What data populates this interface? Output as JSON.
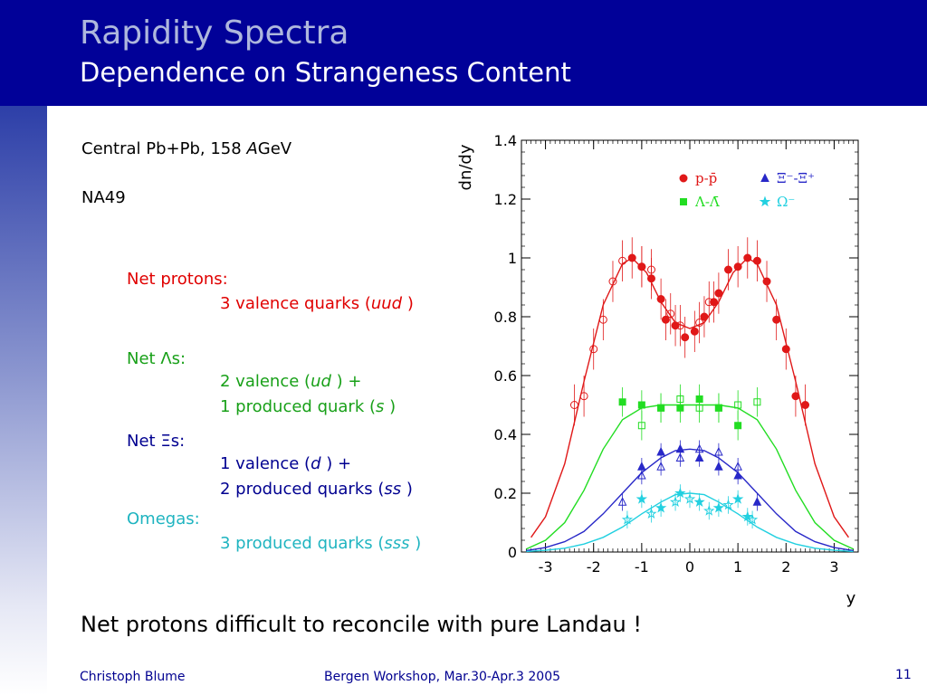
{
  "slide": {
    "title": "Rapidity Spectra",
    "subtitle": "Dependence on Strangeness Content",
    "system_prefix": "Central Pb+Pb, 158 ",
    "system_A": "A",
    "system_suffix": "GeV",
    "experiment": "NA49",
    "net_protons_label": "Net protons:",
    "net_protons_desc_a": "3 valence quarks (",
    "net_protons_desc_q": "uud",
    "net_protons_desc_b": " )",
    "net_lambdas_label_a": "Net ",
    "net_lambdas_label_sym": "Λ",
    "net_lambdas_label_b": "s:",
    "net_lambdas_desc1_a": "2 valence (",
    "net_lambdas_desc1_q": "ud",
    "net_lambdas_desc1_b": " ) +",
    "net_lambdas_desc2_a": "1 produced quark (",
    "net_lambdas_desc2_q": "s",
    "net_lambdas_desc2_b": " )",
    "net_xis_label_a": "Net ",
    "net_xis_label_sym": "Ξ",
    "net_xis_label_b": "s:",
    "net_xis_desc1_a": "1 valence  (",
    "net_xis_desc1_q": "d",
    "net_xis_desc1_b": " ) +",
    "net_xis_desc2_a": "2 produced quarks (",
    "net_xis_desc2_q": "ss",
    "net_xis_desc2_b": " )",
    "omegas_label": "Omegas:",
    "omegas_desc_a": "3 produced quarks (",
    "omegas_desc_q": "sss",
    "omegas_desc_b": " )",
    "conclusion": "Net protons difficult to reconcile with pure Landau !",
    "footer_author": "Christoph Blume",
    "footer_event": "Bergen Workshop, Mar.30-Apr.3 2005",
    "page_number": "11"
  },
  "colors": {
    "protons": "#e01818",
    "lambdas": "#22dd22",
    "xis": "#2828c8",
    "omegas": "#22d0e0"
  },
  "chart_data": {
    "type": "scatter",
    "xlabel": "y",
    "ylabel": "dn/dy",
    "xlim": [
      -3.5,
      3.5
    ],
    "ylim": [
      0,
      1.4
    ],
    "x_ticks": [
      "-3",
      "-2",
      "-1",
      "0",
      "1",
      "2",
      "3"
    ],
    "y_ticks": [
      "0",
      "0.2",
      "0.4",
      "0.6",
      "0.8",
      "1",
      "1.2",
      "1.4"
    ],
    "legend_position": "top-right",
    "legend": [
      {
        "label": "p-p̄",
        "marker": "circle",
        "series": "protons"
      },
      {
        "label": "Ξ⁻-Ξ̄⁺",
        "marker": "triangle",
        "series": "xis"
      },
      {
        "label": "Λ-Λ̄",
        "marker": "square",
        "series": "lambdas"
      },
      {
        "label": "Ω⁻",
        "marker": "star",
        "series": "omegas"
      }
    ],
    "series": [
      {
        "key": "protons",
        "marker": "circle",
        "filled": [
          [
            0.1,
            0.75
          ],
          [
            0.3,
            0.8
          ],
          [
            0.5,
            0.85
          ],
          [
            0.6,
            0.88
          ],
          [
            0.8,
            0.96
          ],
          [
            1.0,
            0.97
          ],
          [
            1.2,
            1.0
          ],
          [
            1.4,
            0.99
          ],
          [
            1.6,
            0.92
          ],
          [
            1.8,
            0.79
          ],
          [
            2.0,
            0.69
          ],
          [
            2.2,
            0.53
          ],
          [
            2.4,
            0.5
          ],
          [
            -0.1,
            0.73
          ],
          [
            -0.3,
            0.77
          ],
          [
            -0.5,
            0.79
          ],
          [
            -0.6,
            0.86
          ],
          [
            -0.8,
            0.93
          ],
          [
            -1.0,
            0.97
          ],
          [
            -1.2,
            1.0
          ]
        ],
        "open": [
          [
            -2.4,
            0.5
          ],
          [
            -2.2,
            0.53
          ],
          [
            -2.0,
            0.69
          ],
          [
            -1.8,
            0.79
          ],
          [
            -1.6,
            0.92
          ],
          [
            -1.4,
            0.99
          ],
          [
            -1.0,
            0.97
          ],
          [
            -0.8,
            0.96
          ],
          [
            -0.4,
            0.81
          ],
          [
            -0.2,
            0.77
          ],
          [
            0.2,
            0.78
          ],
          [
            0.4,
            0.85
          ]
        ],
        "fit": [
          [
            -3.3,
            0.05
          ],
          [
            -3.0,
            0.12
          ],
          [
            -2.6,
            0.3
          ],
          [
            -2.2,
            0.58
          ],
          [
            -1.8,
            0.84
          ],
          [
            -1.4,
            0.98
          ],
          [
            -1.2,
            1.0
          ],
          [
            -0.9,
            0.95
          ],
          [
            -0.6,
            0.85
          ],
          [
            -0.3,
            0.78
          ],
          [
            0,
            0.76
          ],
          [
            0.3,
            0.78
          ],
          [
            0.6,
            0.85
          ],
          [
            0.9,
            0.95
          ],
          [
            1.2,
            1.0
          ],
          [
            1.4,
            0.98
          ],
          [
            1.8,
            0.84
          ],
          [
            2.2,
            0.58
          ],
          [
            2.6,
            0.3
          ],
          [
            3.0,
            0.12
          ],
          [
            3.3,
            0.05
          ]
        ]
      },
      {
        "key": "lambdas",
        "marker": "square",
        "filled": [
          [
            -1.4,
            0.51
          ],
          [
            -1.0,
            0.5
          ],
          [
            -0.6,
            0.49
          ],
          [
            -0.2,
            0.49
          ],
          [
            0.2,
            0.52
          ],
          [
            0.6,
            0.49
          ],
          [
            1.0,
            0.43
          ]
        ],
        "open": [
          [
            -1.0,
            0.43
          ],
          [
            -0.6,
            0.49
          ],
          [
            -0.2,
            0.52
          ],
          [
            0.2,
            0.49
          ],
          [
            0.6,
            0.49
          ],
          [
            1.0,
            0.5
          ],
          [
            1.4,
            0.51
          ]
        ],
        "fit": [
          [
            -3.4,
            0.01
          ],
          [
            -3.0,
            0.04
          ],
          [
            -2.6,
            0.1
          ],
          [
            -2.2,
            0.21
          ],
          [
            -1.8,
            0.35
          ],
          [
            -1.4,
            0.45
          ],
          [
            -1.0,
            0.49
          ],
          [
            -0.6,
            0.5
          ],
          [
            0,
            0.5
          ],
          [
            0.6,
            0.5
          ],
          [
            1.0,
            0.49
          ],
          [
            1.4,
            0.45
          ],
          [
            1.8,
            0.35
          ],
          [
            2.2,
            0.21
          ],
          [
            2.6,
            0.1
          ],
          [
            3.0,
            0.04
          ],
          [
            3.4,
            0.01
          ]
        ]
      },
      {
        "key": "xis",
        "marker": "triangle",
        "filled": [
          [
            -1.0,
            0.29
          ],
          [
            -0.6,
            0.34
          ],
          [
            -0.2,
            0.35
          ],
          [
            0.2,
            0.32
          ],
          [
            0.6,
            0.29
          ],
          [
            1.0,
            0.26
          ],
          [
            1.4,
            0.17
          ]
        ],
        "open": [
          [
            -1.4,
            0.17
          ],
          [
            -1.0,
            0.26
          ],
          [
            -0.6,
            0.29
          ],
          [
            -0.2,
            0.32
          ],
          [
            0.2,
            0.35
          ],
          [
            0.6,
            0.34
          ],
          [
            1.0,
            0.29
          ]
        ],
        "fit": [
          [
            -3.4,
            0.005
          ],
          [
            -3.0,
            0.015
          ],
          [
            -2.6,
            0.035
          ],
          [
            -2.2,
            0.07
          ],
          [
            -1.8,
            0.13
          ],
          [
            -1.4,
            0.2
          ],
          [
            -1.0,
            0.27
          ],
          [
            -0.6,
            0.32
          ],
          [
            -0.3,
            0.345
          ],
          [
            0,
            0.35
          ],
          [
            0.3,
            0.345
          ],
          [
            0.6,
            0.32
          ],
          [
            1.0,
            0.27
          ],
          [
            1.4,
            0.2
          ],
          [
            1.8,
            0.13
          ],
          [
            2.2,
            0.07
          ],
          [
            2.6,
            0.035
          ],
          [
            3.0,
            0.015
          ],
          [
            3.4,
            0.005
          ]
        ]
      },
      {
        "key": "omegas",
        "marker": "star",
        "filled": [
          [
            -1.0,
            0.18
          ],
          [
            -0.6,
            0.15
          ],
          [
            -0.2,
            0.2
          ],
          [
            0.2,
            0.17
          ],
          [
            0.6,
            0.15
          ],
          [
            1.0,
            0.18
          ],
          [
            1.2,
            0.12
          ]
        ],
        "open": [
          [
            -1.3,
            0.11
          ],
          [
            -0.8,
            0.13
          ],
          [
            -0.3,
            0.17
          ],
          [
            0,
            0.18
          ],
          [
            0.4,
            0.14
          ],
          [
            0.8,
            0.16
          ],
          [
            1.3,
            0.11
          ]
        ],
        "fit": [
          [
            -3.4,
            0.002
          ],
          [
            -3.0,
            0.006
          ],
          [
            -2.6,
            0.013
          ],
          [
            -2.2,
            0.027
          ],
          [
            -1.8,
            0.05
          ],
          [
            -1.4,
            0.085
          ],
          [
            -1.0,
            0.13
          ],
          [
            -0.6,
            0.17
          ],
          [
            -0.3,
            0.195
          ],
          [
            0,
            0.2
          ],
          [
            0.3,
            0.195
          ],
          [
            0.6,
            0.17
          ],
          [
            1.0,
            0.13
          ],
          [
            1.4,
            0.085
          ],
          [
            1.8,
            0.05
          ],
          [
            2.2,
            0.027
          ],
          [
            2.6,
            0.013
          ],
          [
            3.0,
            0.006
          ],
          [
            3.4,
            0.002
          ]
        ]
      }
    ]
  }
}
